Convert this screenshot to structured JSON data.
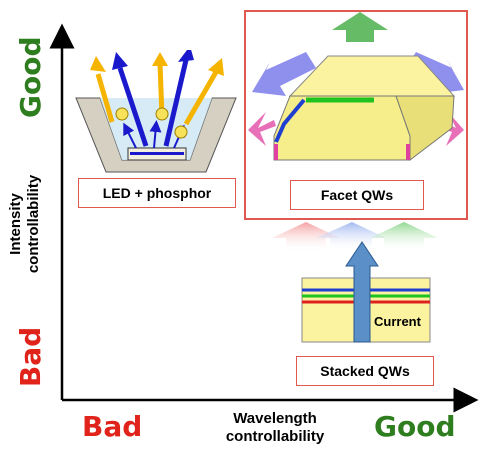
{
  "y_axis": {
    "label_line1": "Intensity",
    "label_line2": "controllability",
    "good": "Good",
    "bad": "Bad"
  },
  "x_axis": {
    "label_line1": "Wavelength",
    "label_line2": "controllability",
    "good": "Good",
    "bad": "Bad"
  },
  "panels": {
    "led": {
      "label": "LED + phosphor"
    },
    "facet": {
      "label": "Facet QWs"
    },
    "stacked": {
      "label": "Stacked QWs",
      "current_label": "Current"
    }
  },
  "colors": {
    "good": "#2e7d1e",
    "bad": "#e0241b",
    "frame": "#e0584f",
    "arrow_blue": "#1a1acc",
    "arrow_yellow": "#f5b400",
    "arrow_green": "#33a533",
    "arrow_pink": "#e040a0",
    "qw_blue": "#1f3fd0",
    "qw_green": "#1fc31f",
    "qw_red": "#e02020",
    "block_yellow": "#fbf3a0"
  }
}
